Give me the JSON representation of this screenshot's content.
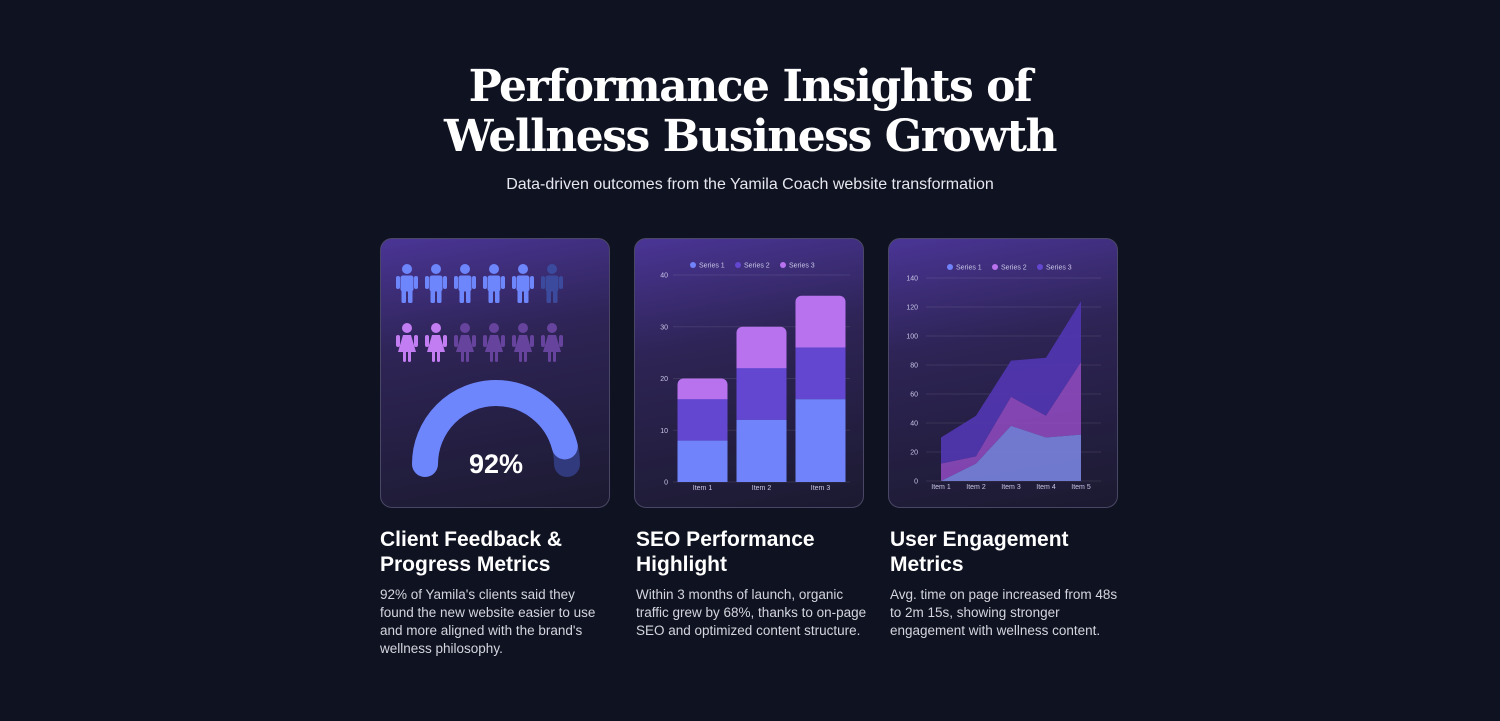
{
  "header": {
    "title_line1": "Performance Insights of",
    "title_line2": "Wellness Business Growth",
    "subtitle": "Data-driven outcomes from the Yamila Coach website transformation"
  },
  "colors": {
    "background": "#0f1220",
    "series1": "#7183fb",
    "series2": "#6447d0",
    "series3": "#b872ee"
  },
  "cards": [
    {
      "title": "Client Feedback & Progress Metrics",
      "text": "92% of Yamila's clients said they found the new website easier to use and more aligned with the brand's wellness philosophy."
    },
    {
      "title": "SEO Performance Highlight",
      "text": "Within 3 months of launch, organic traffic grew by 68%, thanks to on-page SEO and optimized content structure."
    },
    {
      "title": "User Engagement Metrics",
      "text": "Avg. time on page increased from 48s to 2m 15s, showing stronger engagement with wellness content."
    }
  ],
  "chart_data": [
    {
      "type": "pictogram-gauge",
      "gauge_label": "92%",
      "gauge_value": 0.92,
      "icons": [
        {
          "name": "male-figure-icon",
          "total": 6,
          "highlighted": 5
        },
        {
          "name": "female-figure-icon",
          "total": 6,
          "highlighted": 2
        }
      ]
    },
    {
      "type": "bar",
      "stacked": true,
      "categories": [
        "Item 1",
        "Item 2",
        "Item 3"
      ],
      "series": [
        {
          "name": "Series 1",
          "values": [
            8,
            12,
            16
          ]
        },
        {
          "name": "Series 2",
          "values": [
            8,
            10,
            10
          ]
        },
        {
          "name": "Series 3",
          "values": [
            4,
            8,
            10
          ]
        }
      ],
      "ylim": [
        0,
        40
      ],
      "yticks": [
        0,
        10,
        20,
        30,
        40
      ],
      "legend": "top",
      "grid": true
    },
    {
      "type": "area",
      "stacked": true,
      "categories": [
        "Item 1",
        "Item 2",
        "Item 3",
        "Item 4",
        "Item 5"
      ],
      "series": [
        {
          "name": "Series 1",
          "values": [
            0,
            12,
            38,
            30,
            32
          ]
        },
        {
          "name": "Series 2",
          "values": [
            12,
            5,
            20,
            15,
            50
          ]
        },
        {
          "name": "Series 3",
          "values": [
            18,
            28,
            25,
            40,
            42
          ]
        }
      ],
      "ylim": [
        0,
        140
      ],
      "yticks": [
        0,
        20,
        40,
        60,
        80,
        100,
        120,
        140
      ],
      "legend": "top",
      "grid": true
    }
  ]
}
